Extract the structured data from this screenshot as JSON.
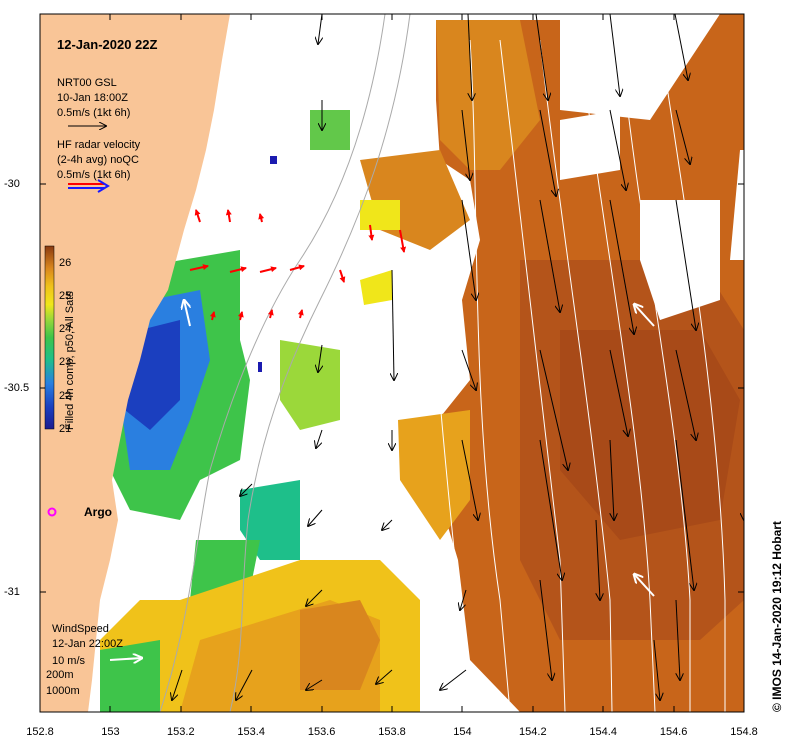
{
  "title": "12-Jan-2020 22Z",
  "legend": {
    "gsl": {
      "line1": "NRT00 GSL",
      "line2": "10-Jan 18:00Z",
      "line3": "0.5m/s (1kt 6h)"
    },
    "hf": {
      "line1": "HF radar velocity",
      "line2": "(2-4h avg) noQC",
      "line3": "0.5m/s (1kt 6h)"
    },
    "wind": {
      "line1": "WindSpeed",
      "line2": "12-Jan 22:00Z",
      "line3": "10 m/s"
    },
    "contours": {
      "c200": "200m",
      "c1000": "1000m"
    }
  },
  "argo_label": "Argo",
  "credit": "© IMOS 14-Jan-2020 19:12 Hobart",
  "colorbar": {
    "label": "Filled 4h comp, p50, All Sats",
    "ticks": [
      "21",
      "22",
      "23",
      "24",
      "25",
      "26"
    ],
    "min": 21,
    "max": 26.5
  },
  "axes": {
    "x_ticks": [
      "152.8",
      "153",
      "153.2",
      "153.4",
      "153.6",
      "153.8",
      "154",
      "154.2",
      "154.4",
      "154.6",
      "154.8"
    ],
    "y_ticks": [
      "-30",
      "-30.5",
      "-31"
    ]
  },
  "colors": {
    "land": "#f9c597",
    "hf_arrow": "#ff0000",
    "gsl_arrow": "#000000",
    "wind_arrow": "#ffffff",
    "argo": "#ff00ff",
    "hf_legend_arrow": "#1a1aff"
  }
}
